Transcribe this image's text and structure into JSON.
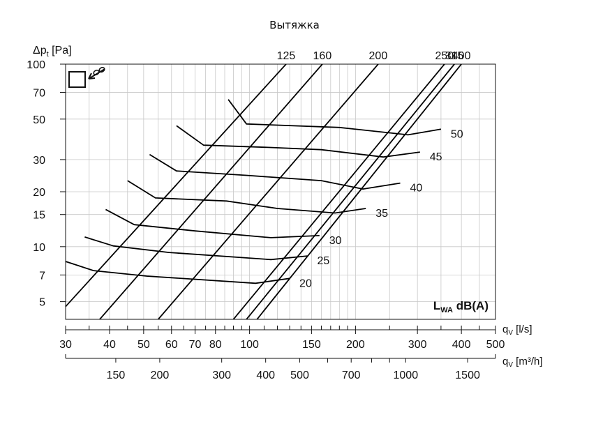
{
  "title": "Вытяжка",
  "chart_data": {
    "type": "line",
    "title": "Вытяжка",
    "ylabel_main": "Δp",
    "ylabel_sub": "t",
    "ylabel_unit": " [Pa]",
    "yscale": "log",
    "ylim": [
      4,
      100
    ],
    "y_ticks": [
      5,
      7,
      10,
      15,
      20,
      30,
      50,
      70,
      100
    ],
    "xscale": "log",
    "xlim": [
      30,
      500
    ],
    "x_ls_label": "[l/s]",
    "x_ls_ticks": [
      30,
      40,
      50,
      60,
      70,
      80,
      100,
      150,
      200,
      300,
      400,
      500
    ],
    "x_ls_minor": [
      35,
      45,
      55,
      65,
      75,
      85,
      90,
      95,
      110,
      120,
      130,
      140,
      160,
      170,
      180,
      190,
      250,
      350,
      450
    ],
    "x_m3h_label": "[m³/h]",
    "x_m3h_ticks": [
      150,
      200,
      300,
      400,
      500,
      700,
      1000,
      1500
    ],
    "x_m3h_minor": [
      600,
      800,
      900
    ],
    "x_axis_symbol": "q",
    "x_axis_sub": "V",
    "lwa_label_main": "L",
    "lwa_label_sub": "WA",
    "lwa_label_unit": " dB(A)",
    "series": [
      {
        "name": "125",
        "points": [
          [
            30,
            4.7
          ],
          [
            127,
            100
          ]
        ]
      },
      {
        "name": "160",
        "points": [
          [
            37.5,
            4
          ],
          [
            161,
            100
          ]
        ]
      },
      {
        "name": "200",
        "points": [
          [
            55,
            4
          ],
          [
            232,
            100
          ]
        ]
      },
      {
        "name": "250",
        "points": [
          [
            90,
            4
          ],
          [
            358,
            100
          ]
        ]
      },
      {
        "name": "315",
        "points": [
          [
            98,
            4
          ],
          [
            382,
            100
          ]
        ]
      },
      {
        "name": "400",
        "points": [
          [
            105,
            4
          ],
          [
            400,
            100
          ]
        ]
      }
    ],
    "sound_levels": [
      {
        "label": "50",
        "points": [
          [
            87,
            64
          ],
          [
            98,
            47
          ],
          [
            180,
            45
          ],
          [
            282,
            41
          ],
          [
            350,
            44
          ]
        ]
      },
      {
        "label": "45",
        "points": [
          [
            62,
            46
          ],
          [
            74,
            36
          ],
          [
            113,
            35
          ],
          [
            160,
            34
          ],
          [
            240,
            31
          ],
          [
            305,
            33
          ]
        ]
      },
      {
        "label": "40",
        "points": [
          [
            52,
            32
          ],
          [
            62,
            26
          ],
          [
            98,
            24.6
          ],
          [
            160,
            23
          ],
          [
            210,
            20.7
          ],
          [
            268,
            22.3
          ]
        ]
      },
      {
        "label": "35",
        "points": [
          [
            45,
            23
          ],
          [
            54,
            18.5
          ],
          [
            86,
            17.8
          ],
          [
            120,
            16.2
          ],
          [
            175,
            15.3
          ],
          [
            214,
            16.2
          ]
        ]
      },
      {
        "label": "30",
        "points": [
          [
            39,
            16
          ],
          [
            47,
            13.2
          ],
          [
            70,
            12.2
          ],
          [
            115,
            11.2
          ],
          [
            158,
            11.5
          ]
        ]
      },
      {
        "label": "25",
        "points": [
          [
            34,
            11.3
          ],
          [
            41,
            10.1
          ],
          [
            59,
            9.3
          ],
          [
            115,
            8.5
          ],
          [
            146,
            8.9
          ]
        ]
      },
      {
        "label": "20",
        "points": [
          [
            30,
            8.3
          ],
          [
            36,
            7.4
          ],
          [
            51,
            6.9
          ],
          [
            104,
            6.3
          ],
          [
            130,
            6.7
          ]
        ]
      }
    ]
  }
}
